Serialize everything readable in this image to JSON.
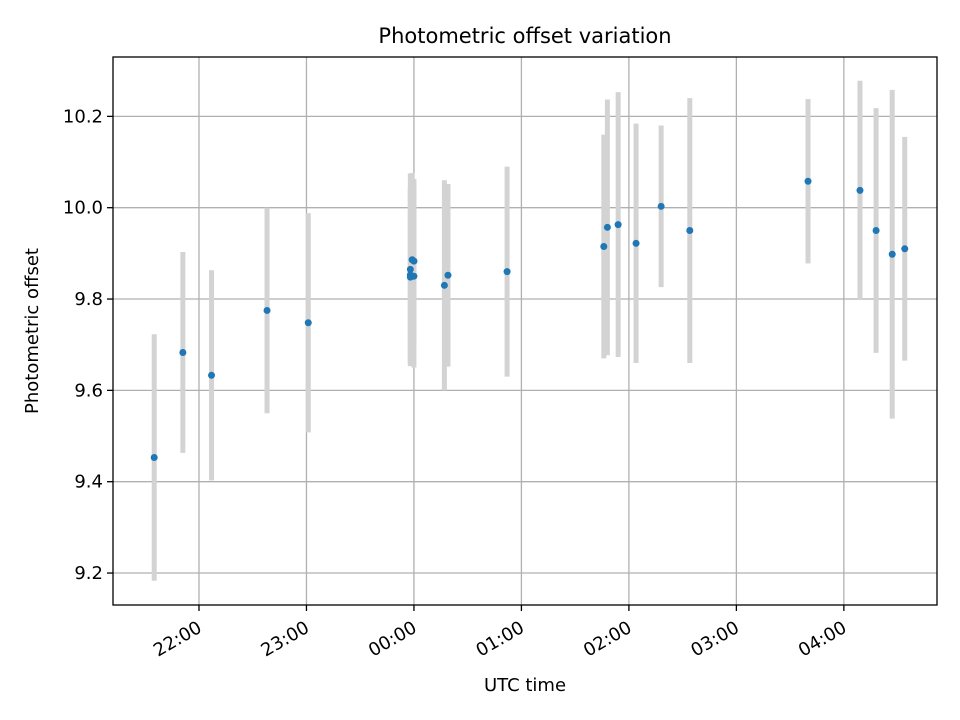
{
  "chart_data": {
    "type": "scatter",
    "title": "Photometric offset variation",
    "xlabel": "UTC time",
    "ylabel": "Photometric offset",
    "x_tick_labels": [
      "22:00",
      "23:00",
      "00:00",
      "01:00",
      "02:00",
      "03:00",
      "04:00"
    ],
    "x_tick_hours": [
      22,
      23,
      24,
      25,
      26,
      27,
      28
    ],
    "y_ticks": [
      9.2,
      9.4,
      9.6,
      9.8,
      10.0,
      10.2
    ],
    "y_tick_labels": [
      "9.2",
      "9.4",
      "9.6",
      "9.8",
      "10.0",
      "10.2"
    ],
    "xlim": [
      "21:12",
      "04:52"
    ],
    "ylim": [
      9.13,
      10.33
    ],
    "grid": true,
    "colors": {
      "point": "#1f77b4",
      "errorbar": "#d3d3d3",
      "grid": "#b0b0b0"
    },
    "series": [
      {
        "x": [
          "21:35",
          "21:51",
          "22:07",
          "22:38",
          "23:01",
          "23:58",
          "23:58",
          "23:58",
          "23:59",
          "00:00",
          "00:00",
          "00:17",
          "00:19",
          "00:52",
          "01:46",
          "01:48",
          "01:54",
          "02:04",
          "02:18",
          "02:34",
          "03:40",
          "04:09",
          "04:18",
          "04:27",
          "04:34"
        ],
        "y": [
          9.453,
          9.683,
          9.633,
          9.775,
          9.748,
          9.853,
          9.865,
          9.848,
          9.886,
          9.883,
          9.85,
          9.83,
          9.852,
          9.86,
          9.915,
          9.957,
          9.963,
          9.922,
          10.003,
          9.95,
          10.058,
          10.038,
          9.95,
          9.898,
          9.91
        ],
        "yerr": [
          0.27,
          0.22,
          0.23,
          0.225,
          0.24,
          0.19,
          0.21,
          0.195,
          0.19,
          0.18,
          0.2,
          0.23,
          0.2,
          0.23,
          0.245,
          0.28,
          0.29,
          0.262,
          0.177,
          0.29,
          0.18,
          0.24,
          0.268,
          0.36,
          0.245
        ]
      }
    ]
  }
}
